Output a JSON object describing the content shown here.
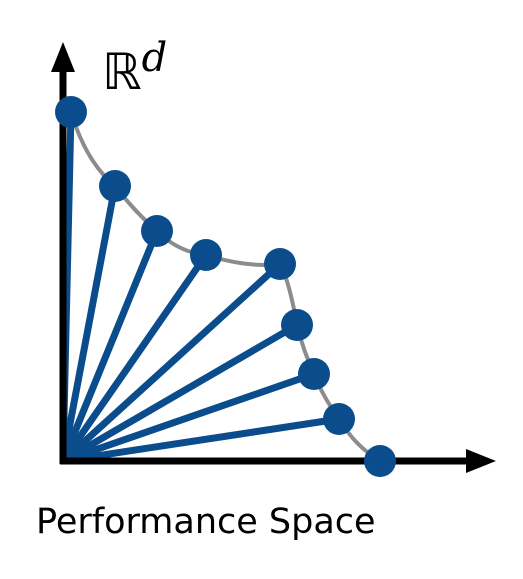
{
  "axis_label": {
    "symbol": "ℝ",
    "superscript": "d"
  },
  "caption": "Performance Space",
  "colors": {
    "ray": "#0b4d8c",
    "point": "#0b4d8c",
    "front_curve": "#8c8c8c",
    "axis": "#000000"
  },
  "pareto_front": {
    "point_count": 9
  }
}
